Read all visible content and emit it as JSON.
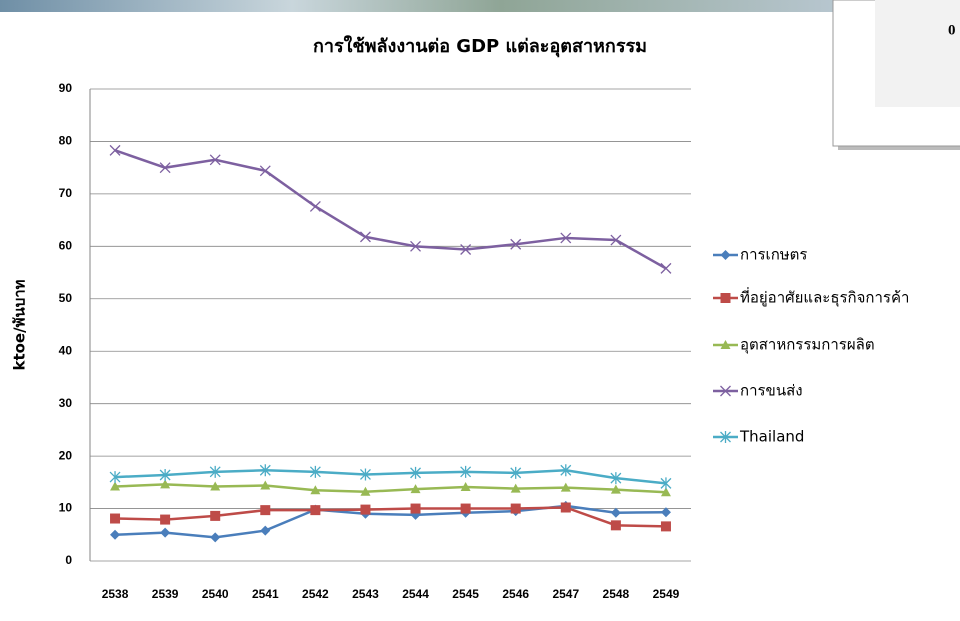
{
  "chart_data": {
    "type": "line",
    "title": "การใช้พลังงานต่อ GDP แต่ละอุตสาหกรรม",
    "y_label": "ktoe/พันบาท",
    "inset_text": "0",
    "categories": [
      "2538",
      "2539",
      "2540",
      "2541",
      "2542",
      "2543",
      "2544",
      "2545",
      "2546",
      "2547",
      "2548",
      "2549"
    ],
    "series": [
      {
        "name": "การเกษตร",
        "color": "#4a7ebb",
        "marker": "diamond",
        "values": [
          5,
          5.4,
          4.5,
          5.8,
          9.8,
          9,
          8.8,
          9.2,
          9.5,
          10.5,
          9.2,
          9.3
        ]
      },
      {
        "name": "ที่อยู่อาศัยและธุรกิจการค้า",
        "color": "#be4b48",
        "marker": "square",
        "values": [
          8.1,
          7.9,
          8.6,
          9.7,
          9.7,
          9.8,
          10,
          10,
          10,
          10.2,
          6.8,
          6.6
        ]
      },
      {
        "name": "อุตสาหกรรมการผลิต",
        "color": "#98b954",
        "marker": "triangle",
        "values": [
          14.2,
          14.6,
          14.2,
          14.4,
          13.5,
          13.2,
          13.7,
          14.1,
          13.8,
          14,
          13.6,
          13.1
        ]
      },
      {
        "name": "การขนส่ง",
        "color": "#7d60a0",
        "marker": "x",
        "values": [
          78.3,
          75,
          76.5,
          74.4,
          67.6,
          61.8,
          60,
          59.4,
          60.4,
          61.6,
          61.2,
          55.8
        ]
      },
      {
        "name": "Thailand",
        "color": "#4bacc6",
        "marker": "star",
        "values": [
          16,
          16.4,
          17,
          17.3,
          17,
          16.5,
          16.8,
          17,
          16.8,
          17.3,
          15.8,
          14.8
        ]
      }
    ],
    "ylim": [
      0,
      90
    ],
    "yticks": [
      0,
      10,
      20,
      30,
      40,
      50,
      60,
      70,
      80,
      90
    ],
    "grid": true,
    "legend": "right"
  }
}
